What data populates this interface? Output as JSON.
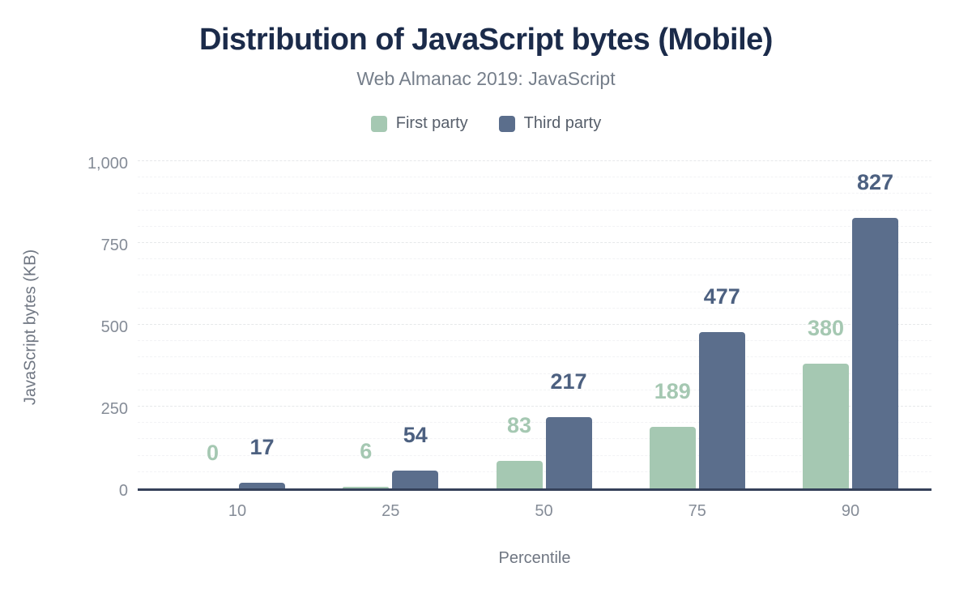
{
  "title": "Distribution of JavaScript bytes (Mobile)",
  "subtitle": "Web Almanac 2019: JavaScript",
  "colors": {
    "title": "#1b2b4a",
    "subtitle": "#757e8a",
    "axis_line": "#35415a",
    "tick_label": "#858c97",
    "axis_title": "#6f7682",
    "major_gridline": "#e6e8ea",
    "minor_gridline": "#f2f3f5",
    "first_party": "#a5c8b2",
    "third_party": "#5b6e8c",
    "first_party_label": "#a5c8b2",
    "third_party_label": "#4c6080"
  },
  "chart_data": {
    "type": "bar",
    "title": "Distribution of JavaScript bytes (Mobile)",
    "subtitle": "Web Almanac 2019: JavaScript",
    "categories": [
      "10",
      "25",
      "50",
      "75",
      "90"
    ],
    "series": [
      {
        "name": "First party",
        "color": "#a5c8b2",
        "label_color": "#a5c8b2",
        "values": [
          0,
          6,
          83,
          189,
          380
        ]
      },
      {
        "name": "Third party",
        "color": "#5b6e8c",
        "label_color": "#4c6080",
        "values": [
          17,
          54,
          217,
          477,
          827
        ]
      }
    ],
    "xlabel": "Percentile",
    "ylabel": "JavaScript bytes (KB)",
    "ylim": [
      0,
      1000
    ],
    "yticks": [
      0,
      250,
      500,
      750,
      1000
    ],
    "ytick_labels": [
      "0",
      "250",
      "500",
      "750",
      "1,000"
    ],
    "minor_grid_step": 50,
    "grid": true,
    "legend_position": "top",
    "data_labels": true
  }
}
